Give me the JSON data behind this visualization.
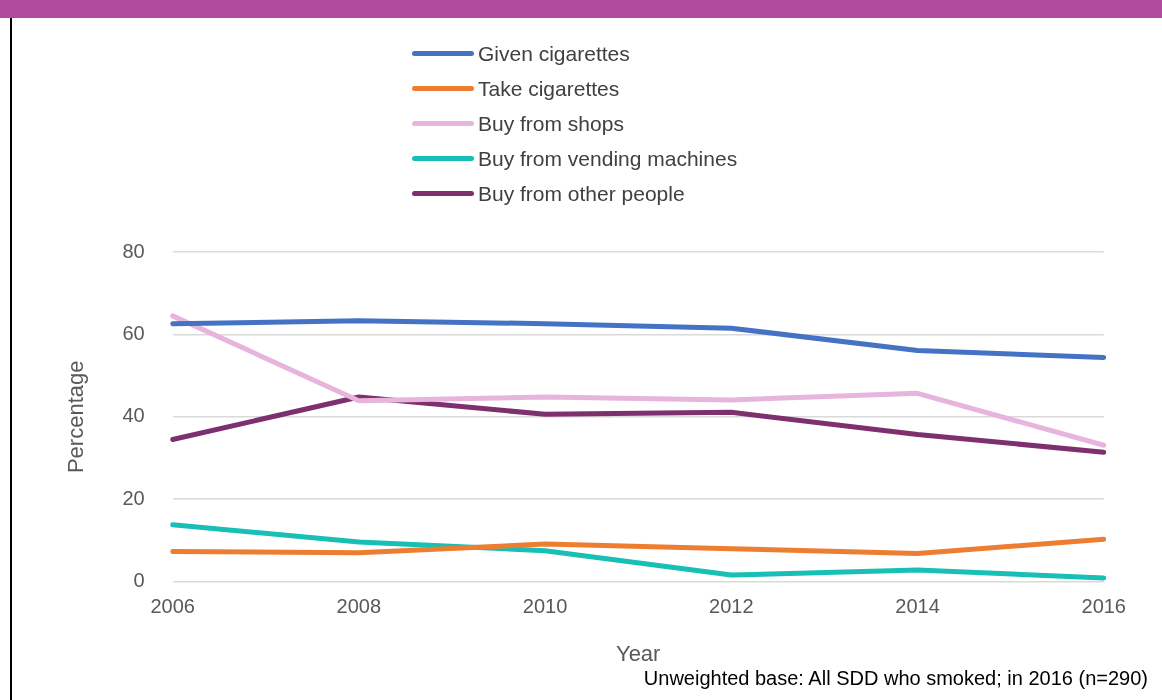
{
  "chart_data": {
    "type": "line",
    "categories": [
      "2006",
      "2008",
      "2010",
      "2012",
      "2014",
      "2016"
    ],
    "series": [
      {
        "name": "Given cigarettes",
        "color": "#4472c4",
        "values": [
          62.6,
          63.3,
          62.6,
          61.5,
          56.1,
          54.4
        ]
      },
      {
        "name": "Take cigarettes",
        "color": "#ed7d31",
        "values": [
          7.3,
          7.0,
          9.1,
          8.0,
          6.8,
          10.3
        ]
      },
      {
        "name": "Buy from shops",
        "color": "#e6b4dc",
        "values": [
          64.5,
          43.9,
          44.8,
          44.1,
          45.7,
          33.1
        ]
      },
      {
        "name": "Buy from vending machines",
        "color": "#17bfb5",
        "values": [
          13.8,
          9.6,
          7.5,
          1.6,
          2.8,
          0.9
        ]
      },
      {
        "name": "Buy from other people",
        "color": "#7e2f6e",
        "values": [
          34.5,
          44.8,
          40.6,
          41.1,
          35.7,
          31.4
        ]
      }
    ],
    "xlabel": "Year",
    "ylabel": "Percentage",
    "ylim": [
      0,
      80
    ],
    "yticks": [
      0,
      20,
      40,
      60,
      80
    ],
    "grid": "y",
    "legend": "top",
    "marker": "none",
    "line_style": "solid",
    "annotations": [
      "Unweighted base: All SDD who smoked; in 2016 (n=290)"
    ]
  }
}
